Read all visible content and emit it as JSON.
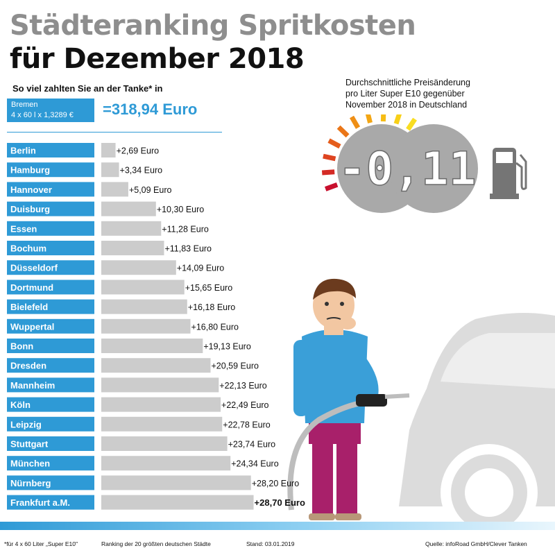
{
  "header": {
    "title_line1": "Städteranking Spritkosten",
    "title_line2": "für Dezember 2018",
    "subtitle": "So viel zahlten Sie an der Tanke* in"
  },
  "bremen": {
    "city": "Bremen",
    "formula": "4 x 60 l x 1,3289 €",
    "total": "=318,94 Euro"
  },
  "price_change": {
    "caption_lines": [
      "Durchschnittliche Preisänderung",
      "pro Liter Super E10 gegenüber",
      "November 2018 in Deutschland"
    ],
    "display_value": "-0,11",
    "icon": "fuel-pump-icon"
  },
  "chart_data": {
    "type": "bar",
    "orientation": "horizontal",
    "categories": [
      "Berlin",
      "Hamburg",
      "Hannover",
      "Duisburg",
      "Essen",
      "Bochum",
      "Düsseldorf",
      "Dortmund",
      "Bielefeld",
      "Wuppertal",
      "Bonn",
      "Dresden",
      "Mannheim",
      "Köln",
      "Leipzig",
      "Stuttgart",
      "München",
      "Nürnberg",
      "Frankfurt a.M."
    ],
    "values": [
      2.69,
      3.34,
      5.09,
      10.3,
      11.28,
      11.83,
      14.09,
      15.65,
      16.18,
      16.8,
      19.13,
      20.59,
      22.13,
      22.49,
      22.78,
      23.74,
      24.34,
      28.2,
      28.7
    ],
    "labels": [
      "+2,69 Euro",
      "+3,34 Euro",
      "+5,09 Euro",
      "+10,30 Euro",
      "+11,28 Euro",
      "+11,83 Euro",
      "+14,09 Euro",
      "+15,65 Euro",
      "+16,18 Euro",
      "+16,80 Euro",
      "+19,13 Euro",
      "+20,59 Euro",
      "+22,13 Euro",
      "+22,49 Euro",
      "+22,78 Euro",
      "+23,74 Euro",
      "+24,34 Euro",
      "+28,20 Euro",
      "+28,70 Euro"
    ],
    "highlight": "Frankfurt a.M.",
    "xlim": [
      0,
      30
    ],
    "grid": false,
    "legend": "none"
  },
  "colors": {
    "accent_blue": "#2e9ad6",
    "bar_gray": "#cccccc",
    "title_gray": "#8e8e8e"
  },
  "footer": {
    "note": "*für 4 x 60 Liter „Super E10\"",
    "ranking": "Ranking der 20 größten deutschen Städte",
    "date": "Stand: 03.01.2019",
    "source": "Quelle: infoRoad GmbH/Clever Tanken"
  }
}
